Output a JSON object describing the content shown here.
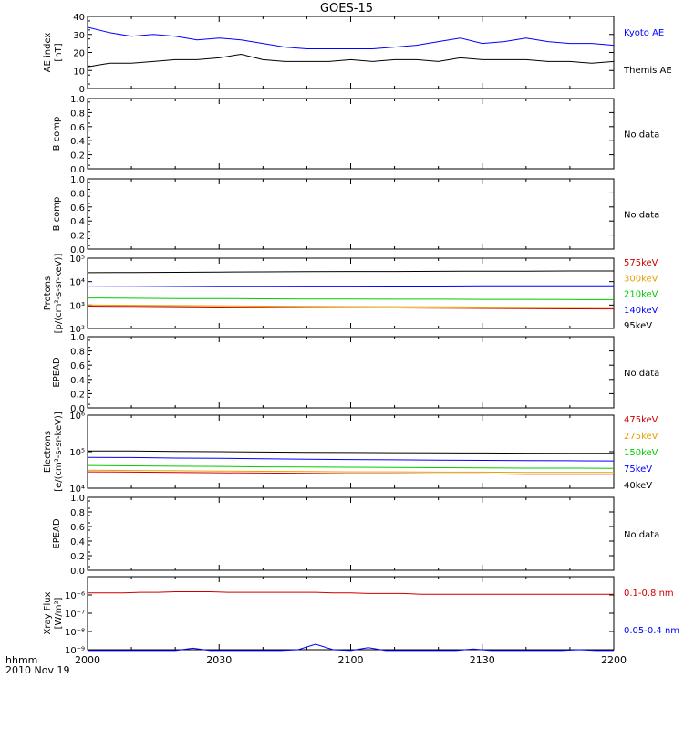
{
  "title": "GOES-15",
  "x_axis": {
    "row1_label": "hhmm",
    "row2_label": "2010 Nov 19",
    "tick_labels": [
      "2000",
      "2030",
      "2100",
      "2130",
      "2200"
    ]
  },
  "colors": {
    "black": "#000000",
    "blue": "#0000ff",
    "red": "#cc0000",
    "orange": "#e6a100",
    "green": "#00cc00"
  },
  "chart_data": [
    {
      "id": "ae",
      "type": "line",
      "ylabel": "AE index",
      "ylabel2": "[nT]",
      "ylim": [
        0,
        40
      ],
      "yscale": "linear",
      "y_ticks": [
        "0",
        "10",
        "20",
        "30",
        "40"
      ],
      "x": [
        0,
        5,
        10,
        15,
        20,
        25,
        30,
        35,
        40,
        45,
        50,
        55,
        60,
        65,
        70,
        75,
        80,
        85,
        90,
        95,
        100,
        105,
        110,
        115,
        120
      ],
      "series": [
        {
          "name": "Kyoto AE",
          "color": "#0000ff",
          "values": [
            34,
            31,
            29,
            30,
            29,
            27,
            28,
            27,
            25,
            23,
            22,
            22,
            22,
            22,
            23,
            24,
            26,
            28,
            25,
            26,
            28,
            26,
            25,
            25,
            24
          ]
        },
        {
          "name": "Themis AE",
          "color": "#000000",
          "values": [
            12,
            14,
            14,
            15,
            16,
            16,
            17,
            19,
            16,
            15,
            15,
            15,
            16,
            15,
            16,
            16,
            15,
            17,
            16,
            16,
            16,
            15,
            15,
            14,
            15
          ]
        }
      ]
    },
    {
      "id": "bcomp1",
      "type": "line",
      "ylabel": "B comp",
      "ylim": [
        0,
        1
      ],
      "yscale": "linear",
      "y_ticks": [
        "0.0",
        "0.2",
        "0.4",
        "0.6",
        "0.8",
        "1.0"
      ],
      "note": "No data",
      "series": []
    },
    {
      "id": "bcomp2",
      "type": "line",
      "ylabel": "B comp",
      "ylim": [
        0,
        1
      ],
      "yscale": "linear",
      "y_ticks": [
        "0.0",
        "0.2",
        "0.4",
        "0.6",
        "0.8",
        "1.0"
      ],
      "note": "No data",
      "series": []
    },
    {
      "id": "protons",
      "type": "line",
      "ylabel": "Protons",
      "ylabel2": "[p/(cm²-s-sr-keV)]",
      "ylim": [
        100,
        100000
      ],
      "yscale": "log",
      "y_ticks": [
        "10²",
        "10³",
        "10⁴",
        "10⁵"
      ],
      "x": [
        0,
        10,
        20,
        30,
        40,
        50,
        60,
        70,
        80,
        90,
        100,
        110,
        120
      ],
      "series": [
        {
          "name": "575keV",
          "color": "#cc0000",
          "values": [
            900,
            880,
            850,
            820,
            800,
            780,
            760,
            750,
            740,
            720,
            700,
            690,
            680
          ]
        },
        {
          "name": "300keV",
          "color": "#e6a100",
          "values": [
            1000,
            980,
            950,
            930,
            900,
            880,
            860,
            850,
            840,
            820,
            800,
            790,
            780
          ]
        },
        {
          "name": "210keV",
          "color": "#00cc00",
          "values": [
            2000,
            1950,
            1900,
            1900,
            1850,
            1800,
            1800,
            1780,
            1780,
            1750,
            1750,
            1720,
            1700
          ]
        },
        {
          "name": "140keV",
          "color": "#0000ff",
          "values": [
            6000,
            6100,
            6200,
            6300,
            6300,
            6400,
            6400,
            6500,
            6500,
            6600,
            6600,
            6600,
            6600
          ]
        },
        {
          "name": "95keV",
          "color": "#000000",
          "values": [
            24000,
            24500,
            25000,
            25500,
            26000,
            26500,
            27000,
            27000,
            27500,
            28000,
            28000,
            28500,
            28500
          ]
        }
      ]
    },
    {
      "id": "epead1",
      "type": "line",
      "ylabel": "EPEAD",
      "ylim": [
        0,
        1
      ],
      "yscale": "linear",
      "y_ticks": [
        "0.0",
        "0.2",
        "0.4",
        "0.6",
        "0.8",
        "1.0"
      ],
      "note": "No data",
      "series": []
    },
    {
      "id": "electrons",
      "type": "line",
      "ylabel": "Electrons",
      "ylabel2": "[e/(cm²-s-sr-keV)]",
      "ylim": [
        10000,
        1000000
      ],
      "yscale": "log",
      "y_ticks": [
        "10⁴",
        "10⁵",
        "10⁶"
      ],
      "x": [
        0,
        10,
        20,
        30,
        40,
        50,
        60,
        70,
        80,
        90,
        100,
        110,
        120
      ],
      "series": [
        {
          "name": "475keV",
          "color": "#cc0000",
          "values": [
            28000,
            27500,
            27000,
            26500,
            26000,
            25500,
            25000,
            25000,
            24500,
            24500,
            24000,
            24000,
            24000
          ]
        },
        {
          "name": "275keV",
          "color": "#e6a100",
          "values": [
            31000,
            30500,
            30000,
            29500,
            29000,
            28500,
            28000,
            28000,
            27500,
            27500,
            27000,
            27000,
            27000
          ]
        },
        {
          "name": "150keV",
          "color": "#00cc00",
          "values": [
            42000,
            41000,
            40000,
            39500,
            38500,
            38000,
            37500,
            37000,
            36500,
            36000,
            35500,
            35500,
            35000
          ]
        },
        {
          "name": "75keV",
          "color": "#0000ff",
          "values": [
            70000,
            69000,
            67000,
            66000,
            64000,
            62000,
            61000,
            60000,
            59000,
            58000,
            57000,
            56500,
            56000
          ]
        },
        {
          "name": "40keV",
          "color": "#000000",
          "values": [
            105000,
            104000,
            102000,
            100000,
            98000,
            96000,
            95000,
            94000,
            93000,
            92000,
            91000,
            90000,
            90000
          ]
        }
      ]
    },
    {
      "id": "epead2",
      "type": "line",
      "ylabel": "EPEAD",
      "ylim": [
        0,
        1
      ],
      "yscale": "linear",
      "y_ticks": [
        "0.0",
        "0.2",
        "0.4",
        "0.6",
        "0.8",
        "1.0"
      ],
      "note": "No data",
      "series": []
    },
    {
      "id": "xray",
      "type": "line",
      "ylabel": "Xray Flux",
      "ylabel2": "[W/m²]",
      "ylim": [
        1e-09,
        1e-05
      ],
      "yscale": "log",
      "y_ticks": [
        "10⁻⁹",
        "10⁻⁸",
        "10⁻⁷",
        "10⁻⁶"
      ],
      "x": [
        0,
        4,
        8,
        12,
        16,
        20,
        24,
        28,
        32,
        36,
        40,
        44,
        48,
        52,
        56,
        60,
        64,
        68,
        72,
        76,
        80,
        84,
        88,
        92,
        96,
        100,
        104,
        108,
        112,
        116,
        120
      ],
      "series": [
        {
          "name": "0.1-0.8 nm",
          "color": "#cc0000",
          "values": [
            1.3e-06,
            1.3e-06,
            1.3e-06,
            1.4e-06,
            1.4e-06,
            1.5e-06,
            1.5e-06,
            1.5e-06,
            1.4e-06,
            1.4e-06,
            1.4e-06,
            1.4e-06,
            1.4e-06,
            1.4e-06,
            1.3e-06,
            1.3e-06,
            1.2e-06,
            1.2e-06,
            1.2e-06,
            1.1e-06,
            1.1e-06,
            1.1e-06,
            1.1e-06,
            1.1e-06,
            1.1e-06,
            1.1e-06,
            1.1e-06,
            1.1e-06,
            1.1e-06,
            1.1e-06,
            1.1e-06
          ]
        },
        {
          "name": "0.05-0.4 nm",
          "color": "#0000ff",
          "values": [
            9e-10,
            9e-10,
            9e-10,
            9e-10,
            9e-10,
            9e-10,
            1.2e-09,
            9e-10,
            9e-10,
            9e-10,
            9e-10,
            9e-10,
            1e-09,
            2e-09,
            1e-09,
            9e-10,
            1.3e-09,
            9e-10,
            9e-10,
            9e-10,
            9e-10,
            9e-10,
            1.1e-09,
            9e-10,
            9e-10,
            9e-10,
            9e-10,
            9e-10,
            1e-09,
            9e-10,
            9e-10
          ]
        }
      ]
    }
  ]
}
